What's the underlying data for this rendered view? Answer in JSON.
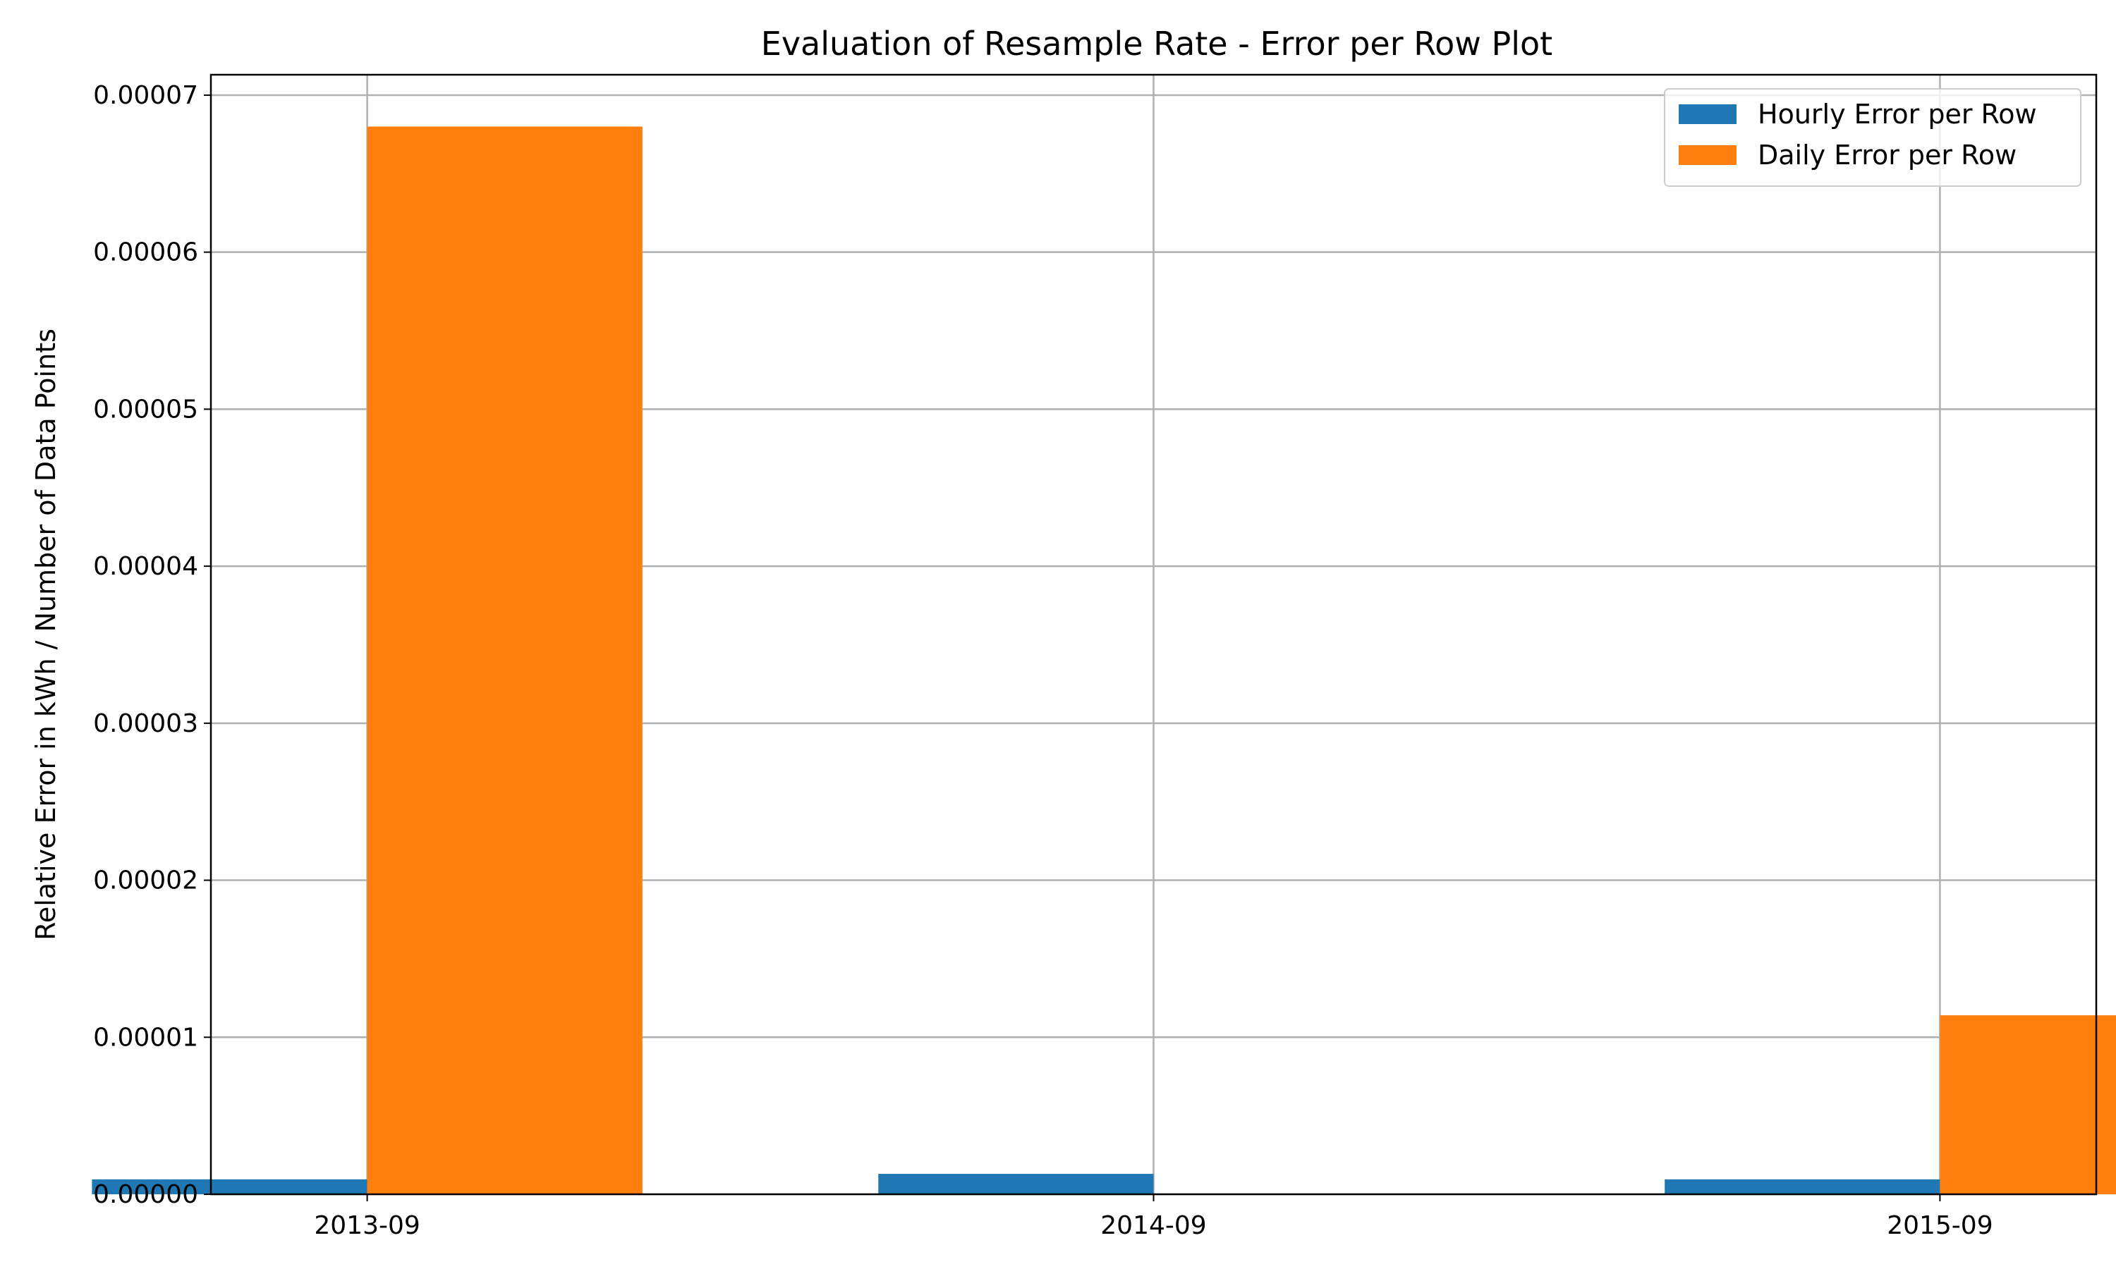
{
  "chart_data": {
    "type": "bar",
    "title": "Evaluation of Resample Rate - Error per Row Plot",
    "xlabel": "",
    "ylabel": "Relative Error in kWh / Number of Data Points",
    "categories": [
      "2013-09",
      "2014-09",
      "2015-09"
    ],
    "series": [
      {
        "name": "Hourly Error per Row",
        "color": "#1f77b4",
        "values": [
          9.5e-07,
          1.3e-06,
          9.5e-07
        ]
      },
      {
        "name": "Daily Error per Row",
        "color": "#ff7f0e",
        "values": [
          6.8e-05,
          0.0,
          1.14e-05
        ]
      }
    ],
    "ylim": [
      0,
      7.13e-05
    ],
    "yticks": [
      0,
      1e-05,
      2e-05,
      3e-05,
      4e-05,
      5e-05,
      6e-05,
      7e-05
    ],
    "ytick_labels": [
      "0.00000",
      "0.00001",
      "0.00002",
      "0.00003",
      "0.00004",
      "0.00005",
      "0.00006",
      "0.00007"
    ],
    "grid": true,
    "legend_position": "top-right"
  }
}
